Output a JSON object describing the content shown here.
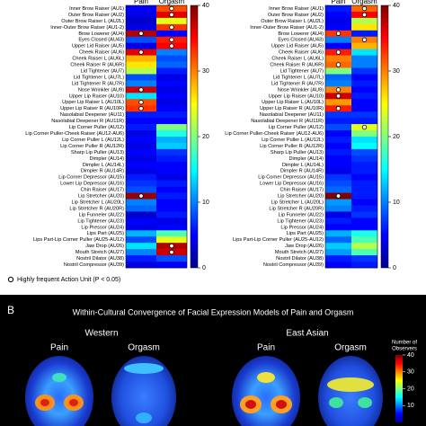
{
  "chart_data": [
    {
      "type": "heatmap",
      "categories": [
        "Inner Brow Raiser (AU1)",
        "Outer Brow Raiser (AU2)",
        "Outer Brow Raiser L (AU2L)",
        "Inner-Outer Brow Raiser (AU1-2)",
        "Brow Lowerer (AU4)",
        "Eyes Closed (AU43)",
        "Upper Lid Raiser (AU5)",
        "Cheek Raiser (AU6)",
        "Cheek Raiser L (AU6L)",
        "Cheek Raiser R (AU6R)",
        "Lid Tightener (AU7)",
        "Lid Tightener L (AU7L)",
        "Lid Tightener R (AU7R)",
        "Nose Wrinkler (AU9)",
        "Upper Lip Raiser (AU10)",
        "Upper Lip Raiser L (AU10L)",
        "Upper Lip Raiser R (AU10R)",
        "Nasolabial Deepener (AU11)",
        "Nasolabial Deepener R (AU11R)",
        "Lip Corner Puller (AU12)",
        "Lip Corner Puller-Cheek Raiser (AU12-AU6)",
        "Lip Corner Puller L (AU12L)",
        "Lip Corner Puller R (AU12R)",
        "Sharp Lip Puller (AU13)",
        "Dimpler (AU14)",
        "Dimpler L (AU14L)",
        "Dimpler R (AU14R)",
        "Lip Corner Depressor (AU15)",
        "Lower Lip Depressor (AU16)",
        "Chin Raiser (AU17)",
        "Lip Stretcher (AU20)",
        "Lip Stretcher L (AU20L)",
        "Lip Stretcher R (AU20R)",
        "Lip Funneler (AU22)",
        "Lip Tightener (AU23)",
        "Lip Pressor (AU24)",
        "Lips Part (AU25)",
        "Lips Part-Lip Corner Puller (AU25-AU12)",
        "Jaw Drop (AU26)",
        "Mouth Stretch (AU27)",
        "Nostril Dilator (AU38)",
        "Nostril Compressor (AU39)"
      ],
      "series": [
        {
          "name": "Pain",
          "values": [
            5,
            4,
            3,
            4,
            38,
            8,
            4,
            36,
            28,
            26,
            22,
            8,
            10,
            37,
            14,
            32,
            33,
            6,
            5,
            6,
            4,
            5,
            4,
            5,
            4,
            5,
            4,
            6,
            7,
            8,
            39,
            10,
            9,
            3,
            5,
            4,
            12,
            8,
            14,
            10,
            6,
            4
          ],
          "frequent": [
            4,
            7,
            13,
            15,
            16,
            30
          ]
        },
        {
          "name": "Orgasm",
          "values": [
            32,
            36,
            24,
            33,
            5,
            34,
            35,
            10,
            8,
            9,
            6,
            4,
            5,
            4,
            5,
            4,
            5,
            6,
            5,
            20,
            16,
            12,
            13,
            7,
            6,
            5,
            5,
            4,
            6,
            5,
            6,
            5,
            5,
            6,
            4,
            5,
            18,
            24,
            38,
            37,
            8,
            5
          ],
          "frequent": [
            0,
            1,
            3,
            5,
            6,
            38,
            39
          ]
        }
      ],
      "zlim": [
        0,
        40
      ],
      "zticks": [
        0,
        10,
        20,
        30,
        40
      ]
    },
    {
      "type": "heatmap",
      "categories": [
        "Inner Brow Raiser (AU1)",
        "Outer Brow Raiser (AU2)",
        "Outer Brow Raiser L (AU2L)",
        "Inner-Outer Brow Raiser (AU1-2)",
        "Brow Lowerer (AU4)",
        "Eyes Closed (AU43)",
        "Upper Lid Raiser (AU5)",
        "Cheek Raiser (AU6)",
        "Cheek Raiser L (AU6L)",
        "Cheek Raiser R (AU6R)",
        "Lid Tightener (AU7)",
        "Lid Tightener L (AU7L)",
        "Lid Tightener R (AU7R)",
        "Nose Wrinkler (AU9)",
        "Upper Lip Raiser (AU10)",
        "Upper Lip Raiser L (AU10L)",
        "Upper Lip Raiser R (AU10R)",
        "Nasolabial Deepener (AU11)",
        "Nasolabial Deepener R (AU11R)",
        "Lip Corner Puller (AU12)",
        "Lip Corner Puller-Cheek Raiser (AU12-AU6)",
        "Lip Corner Puller L (AU12L)",
        "Lip Corner Puller R (AU12R)",
        "Sharp Lip Puller (AU13)",
        "Dimpler (AU14)",
        "Dimpler L (AU14L)",
        "Dimpler R (AU14R)",
        "Lip Corner Depressor (AU15)",
        "Lower Lip Depressor (AU16)",
        "Chin Raiser (AU17)",
        "Lip Stretcher (AU20)",
        "Lip Stretcher L (AU20L)",
        "Lip Stretcher R (AU20R)",
        "Lip Funneler (AU22)",
        "Lip Tightener (AU23)",
        "Lip Pressor (AU24)",
        "Lips Part (AU25)",
        "Lips Part-Lip Corner Puller (AU25-AU12)",
        "Jaw Drop (AU26)",
        "Mouth Stretch (AU27)",
        "Nostril Dilator (AU38)",
        "Nostril Compressor (AU39)"
      ],
      "series": [
        {
          "name": "Pain",
          "values": [
            6,
            5,
            4,
            5,
            33,
            10,
            5,
            34,
            30,
            31,
            20,
            9,
            10,
            30,
            37,
            29,
            34,
            7,
            6,
            8,
            5,
            6,
            5,
            6,
            5,
            5,
            4,
            7,
            8,
            9,
            40,
            11,
            10,
            4,
            6,
            5,
            12,
            9,
            13,
            11,
            6,
            5
          ],
          "frequent": [
            4,
            7,
            9,
            13,
            14,
            16,
            30
          ]
        },
        {
          "name": "Orgasm",
          "values": [
            31,
            35,
            22,
            26,
            6,
            30,
            28,
            14,
            10,
            10,
            7,
            5,
            6,
            5,
            6,
            5,
            5,
            7,
            6,
            24,
            20,
            14,
            15,
            8,
            7,
            6,
            6,
            5,
            6,
            6,
            6,
            5,
            6,
            7,
            5,
            5,
            16,
            18,
            22,
            18,
            7,
            6
          ],
          "frequent": [
            0,
            1,
            5,
            19
          ]
        }
      ],
      "zlim": [
        0,
        40
      ],
      "zticks": [
        0,
        10,
        20,
        30,
        40
      ]
    }
  ],
  "legend": "Highly frequent Action Unit (P < 0.05)",
  "panel_b": {
    "label": "B",
    "title": "Within-Cultural Convergence of Facial Expression Models of Pain and Orgasm",
    "groups": [
      {
        "name": "Western",
        "columns": [
          "Pain",
          "Orgasm"
        ]
      },
      {
        "name": "East Asian",
        "columns": [
          "Pain",
          "Orgasm"
        ]
      }
    ],
    "colorbar": {
      "title": "Number of",
      "title2": "Observers",
      "lim": [
        0,
        40
      ],
      "ticks": [
        10,
        20,
        30,
        40
      ]
    }
  }
}
